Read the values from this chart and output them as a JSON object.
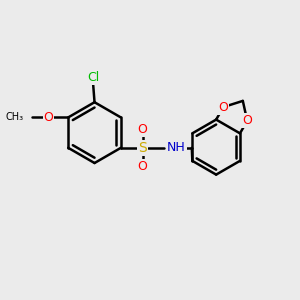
{
  "background_color": "#ebebeb",
  "bond_color": "#000000",
  "bond_width": 1.8,
  "atom_colors": {
    "C": "#000000",
    "H": "#000000",
    "N": "#0000cc",
    "O": "#ff0000",
    "S": "#ccaa00",
    "Cl": "#00bb00"
  },
  "font_size": 8,
  "figure_size": [
    3.0,
    3.0
  ],
  "dpi": 100,
  "xlim": [
    0,
    10
  ],
  "ylim": [
    0,
    10
  ]
}
